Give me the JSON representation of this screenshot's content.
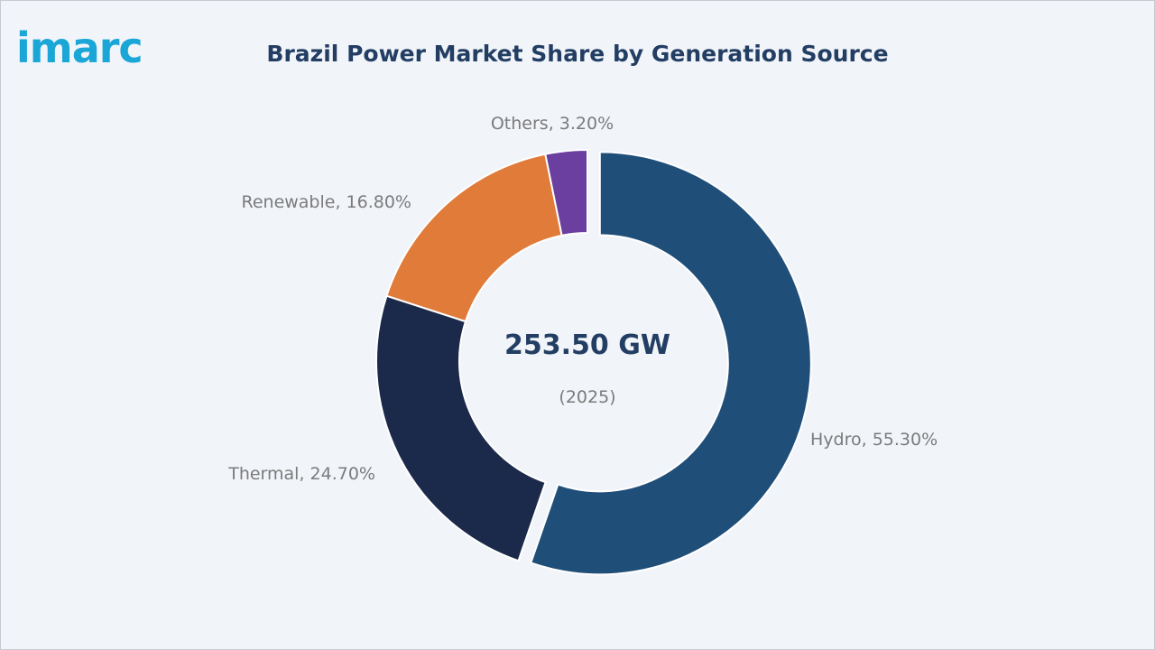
{
  "logo": "imarc",
  "chart_data": {
    "type": "pie",
    "variant": "donut",
    "title": "Brazil Power Market Share by Generation Source",
    "center_value": "253.50 GW",
    "center_sub": "(2025)",
    "slices": [
      {
        "label": "Hydro",
        "value": 55.3,
        "text": "Hydro, 55.30%",
        "color": "#1f4e79",
        "exploded": true
      },
      {
        "label": "Thermal",
        "value": 24.7,
        "text": "Thermal, 24.70%",
        "color": "#1b2a4a",
        "exploded": false
      },
      {
        "label": "Renewable",
        "value": 16.8,
        "text": "Renewable, 16.80%",
        "color": "#e07b39",
        "exploded": false
      },
      {
        "label": "Others",
        "value": 3.2,
        "text": "Others, 3.20%",
        "color": "#6a3fa0",
        "exploded": false
      }
    ]
  }
}
